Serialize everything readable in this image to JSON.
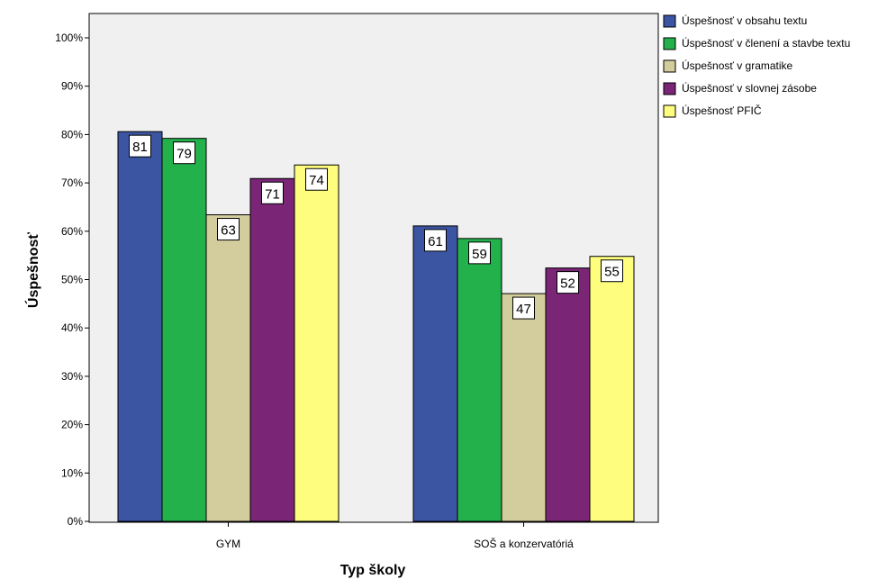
{
  "chart_data": {
    "type": "bar",
    "xlabel": "Typ školy",
    "ylabel": "Úspešnosť",
    "ylim": [
      0,
      1.0
    ],
    "yticks": [
      "0%",
      "10%",
      "20%",
      "30%",
      "40%",
      "50%",
      "60%",
      "70%",
      "80%",
      "90%",
      "100%"
    ],
    "categories": [
      "GYM",
      "SOŠ a konzervatóriá"
    ],
    "legend_position": "right",
    "series": [
      {
        "name": "Úspešnosť v obsahu textu",
        "color": "#3b55a3",
        "values": [
          0.806,
          0.611
        ],
        "labels": [
          "81",
          "61"
        ]
      },
      {
        "name": "Úspešnosť v členení a stavbe textu",
        "color": "#23b14c",
        "values": [
          0.792,
          0.585
        ],
        "labels": [
          "79",
          "59"
        ]
      },
      {
        "name": "Úspešnosť v gramatike",
        "color": "#d3cc9c",
        "values": [
          0.634,
          0.471
        ],
        "labels": [
          "63",
          "47"
        ]
      },
      {
        "name": "Úspešnosť v slovnej zásobe",
        "color": "#7b2577",
        "values": [
          0.709,
          0.524
        ],
        "labels": [
          "71",
          "52"
        ]
      },
      {
        "name": "Úspešnosť PFIČ",
        "color": "#fefd7e",
        "values": [
          0.737,
          0.548
        ],
        "labels": [
          "74",
          "55"
        ]
      }
    ]
  }
}
